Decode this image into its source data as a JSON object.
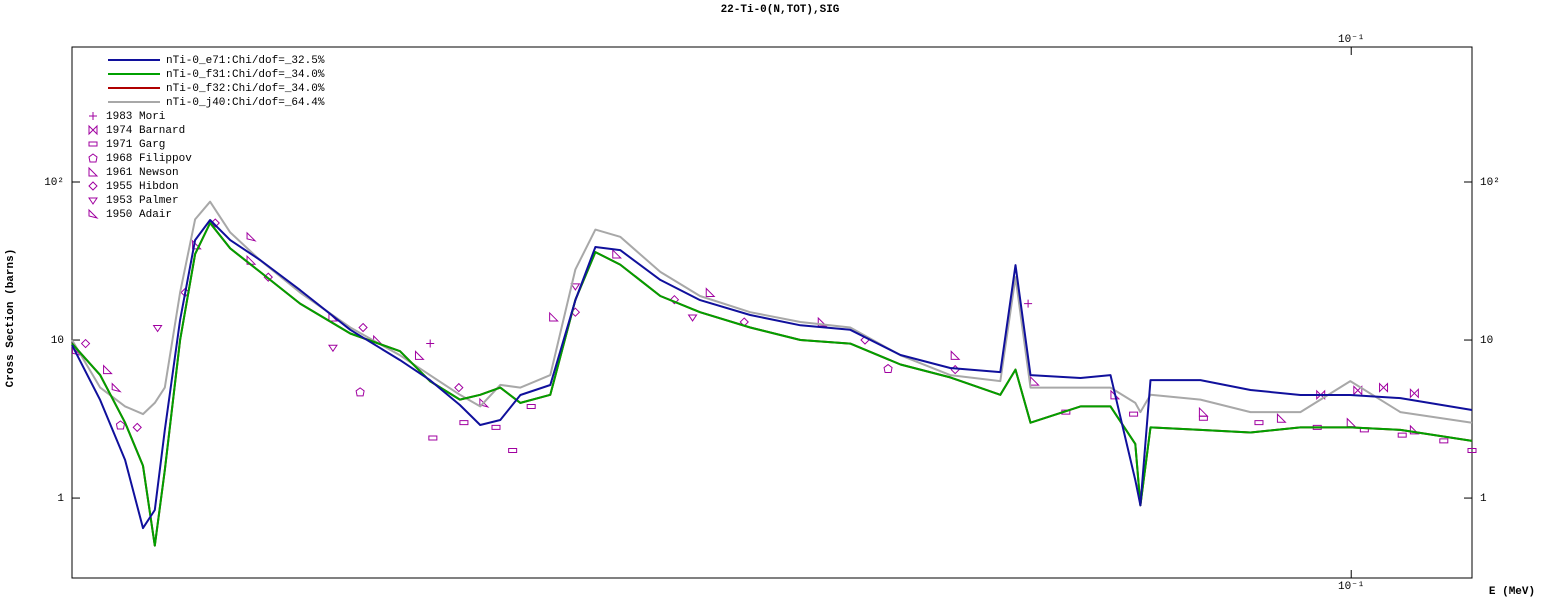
{
  "chart_data": {
    "type": "line",
    "title": "22-Ti-0(N,TOT),SIG",
    "x_label": "E (MeV)",
    "y_label": "Cross Section (barns)",
    "xscale": "log",
    "yscale": "log",
    "xlim": [
      0.0145,
      0.12
    ],
    "ylim": [
      0.312,
      715
    ],
    "xticks": [
      {
        "value": 0.1,
        "label": "10⁻¹"
      }
    ],
    "yticks": [
      1,
      10,
      {
        "value": 100,
        "label": "10²"
      }
    ],
    "legend": "upper left",
    "x": [
      0.0145,
      0.01513,
      0.01571,
      0.01614,
      0.01643,
      0.01668,
      0.01707,
      0.01746,
      0.01786,
      0.01841,
      0.01926,
      0.02046,
      0.02207,
      0.02379,
      0.02489,
      0.02604,
      0.02685,
      0.02768,
      0.02853,
      0.02985,
      0.031,
      0.03195,
      0.03317,
      0.03524,
      0.03742,
      0.04036,
      0.04354,
      0.04695,
      0.05064,
      0.05459,
      0.05888,
      0.06024,
      0.06162,
      0.06645,
      0.06953,
      0.07219,
      0.07274,
      0.07386,
      0.07964,
      0.08589,
      0.09261,
      0.09986,
      0.1077,
      0.12
    ],
    "series": [
      {
        "name": "nTi-0_e71:Chi/dof=_32.5%",
        "color": "#10109c",
        "values": [
          9.29,
          4.17,
          1.74,
          0.646,
          0.84,
          2.69,
          13.4,
          42.9,
          57.5,
          42.9,
          32.1,
          20.7,
          11.6,
          7.47,
          5.58,
          3.88,
          2.9,
          3.12,
          4.49,
          5.19,
          17.9,
          38.8,
          37.1,
          24.0,
          17.9,
          14.4,
          12.4,
          11.6,
          8.04,
          6.65,
          6.27,
          29.8,
          6.0,
          5.75,
          6.0,
          1.3,
          0.9,
          5.58,
          5.58,
          4.83,
          4.49,
          4.49,
          4.29,
          3.61
        ]
      },
      {
        "name": "nTi-0_f31:Chi/dof=_34.0%",
        "color": "#00a000",
        "values": [
          9.5,
          6.0,
          3.0,
          1.6,
          0.5,
          1.5,
          10,
          35,
          55,
          38,
          27,
          17,
          11,
          8.5,
          5.5,
          4.2,
          4.5,
          5.0,
          4.0,
          4.5,
          18,
          36,
          30,
          19,
          15,
          12,
          10,
          9.5,
          7.0,
          5.8,
          4.5,
          6.5,
          3.0,
          3.8,
          3.8,
          2.2,
          0.9,
          2.8,
          2.7,
          2.6,
          2.8,
          2.8,
          2.7,
          2.3
        ]
      },
      {
        "name": "nTi-0_f32:Chi/dof=_34.0%",
        "color": "#b00000",
        "values": [
          9.5,
          6.0,
          3.0,
          1.6,
          0.5,
          1.5,
          10,
          35,
          55,
          38,
          27,
          17,
          11,
          8.5,
          5.5,
          4.2,
          4.5,
          5.0,
          4.0,
          4.5,
          18,
          36,
          30,
          19,
          15,
          12,
          10,
          9.5,
          7.0,
          5.8,
          4.5,
          6.5,
          3.0,
          3.8,
          3.8,
          2.2,
          0.9,
          2.8,
          2.7,
          2.6,
          2.8,
          2.8,
          2.7,
          2.3
        ]
      },
      {
        "name": "nTi-0_j40:Chi/dof=_64.4%",
        "color": "#a8a8a8",
        "values": [
          10,
          5,
          3.8,
          3.4,
          4,
          5,
          20,
          58,
          75,
          48,
          32,
          20,
          12,
          8,
          6,
          4.5,
          3.8,
          5.2,
          5.0,
          6.0,
          28,
          50,
          45,
          27,
          19,
          15,
          13,
          12,
          8,
          6,
          5.5,
          25,
          5.0,
          5.0,
          5.0,
          4.0,
          3.5,
          4.5,
          4.2,
          3.5,
          3.5,
          5.5,
          3.5,
          3.0
        ]
      },
      {
        "name": "1983 Mori",
        "color": "#a000a0",
        "marker": "plus",
        "x": [
          0.0249,
          0.0614
        ],
        "values": [
          9.5,
          17
        ]
      },
      {
        "name": "1974 Barnard",
        "color": "#a000a0",
        "marker": "bowtie",
        "x": [
          0.0955,
          0.101,
          0.105,
          0.11
        ],
        "values": [
          4.5,
          4.8,
          5.0,
          4.6
        ]
      },
      {
        "name": "1971 Garg",
        "color": "#a000a0",
        "marker": "dash",
        "x": [
          0.025,
          0.0262,
          0.0275,
          0.0282,
          0.029,
          0.065,
          0.072,
          0.08,
          0.087,
          0.095,
          0.102,
          0.108,
          0.115,
          0.12
        ],
        "values": [
          2.4,
          3.0,
          2.8,
          2.0,
          3.8,
          3.5,
          3.4,
          3.2,
          3.0,
          2.8,
          2.7,
          2.5,
          2.3,
          2.0
        ]
      },
      {
        "name": "1968 Filippov",
        "color": "#a000a0",
        "marker": "pentagon",
        "x": [
          0.0156,
          0.0224,
          0.0497
        ],
        "values": [
          2.9,
          4.7,
          6.6
        ]
      },
      {
        "name": "1961 Newson",
        "color": "#a000a0",
        "marker": "triangle",
        "x": [
          0.0153,
          0.0175,
          0.019,
          0.0215,
          0.0245,
          0.03,
          0.033,
          0.038,
          0.045,
          0.055,
          0.062,
          0.07,
          0.08,
          0.09,
          0.1,
          0.11
        ],
        "values": [
          6.5,
          40,
          32,
          14,
          8,
          14,
          35,
          20,
          13,
          8,
          5.5,
          4.5,
          3.5,
          3.2,
          3.0,
          2.7
        ]
      },
      {
        "name": "1955 Hibdon",
        "color": "#a000a0",
        "marker": "diamond",
        "x": [
          0.0148,
          0.016,
          0.0172,
          0.018,
          0.0195,
          0.0225,
          0.026,
          0.031,
          0.036,
          0.04,
          0.048,
          0.055
        ],
        "values": [
          9.5,
          2.8,
          20,
          55,
          25,
          12,
          5,
          15,
          18,
          13,
          10,
          6.5
        ]
      },
      {
        "name": "1953 Palmer",
        "color": "#a000a0",
        "marker": "down",
        "x": [
          0.0165,
          0.0215,
          0.031,
          0.037
        ],
        "values": [
          12,
          9,
          22,
          14
        ]
      },
      {
        "name": "1950 Adair",
        "color": "#a000a0",
        "marker": "flag",
        "x": [
          0.0146,
          0.0155,
          0.019,
          0.023,
          0.027
        ],
        "values": [
          8.5,
          5.0,
          45,
          10,
          4.0
        ]
      }
    ]
  }
}
